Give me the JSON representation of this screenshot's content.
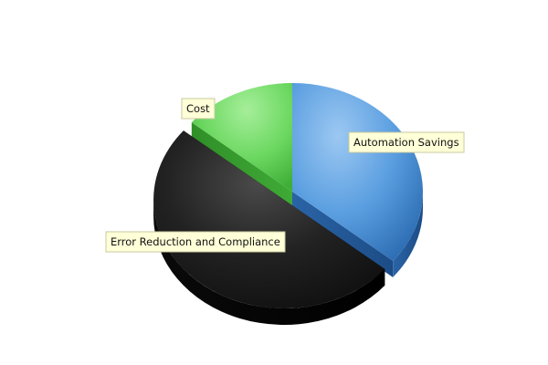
{
  "chart_data": {
    "type": "pie",
    "title": "",
    "categories": [
      "Automation Savings",
      "Error Reduction and Compliance",
      "Cost"
    ],
    "values": [
      36,
      50,
      14
    ],
    "colors": {
      "Automation Savings": "#4a8fd6",
      "Error Reduction and Compliance": "#1c1c1c",
      "Cost": "#5fcf52"
    },
    "exploded": "Error Reduction and Compliance",
    "style": "3d",
    "legend": "none",
    "labels": [
      {
        "text": "Automation Savings"
      },
      {
        "text": "Error Reduction and Compliance"
      },
      {
        "text": "Cost"
      }
    ]
  }
}
